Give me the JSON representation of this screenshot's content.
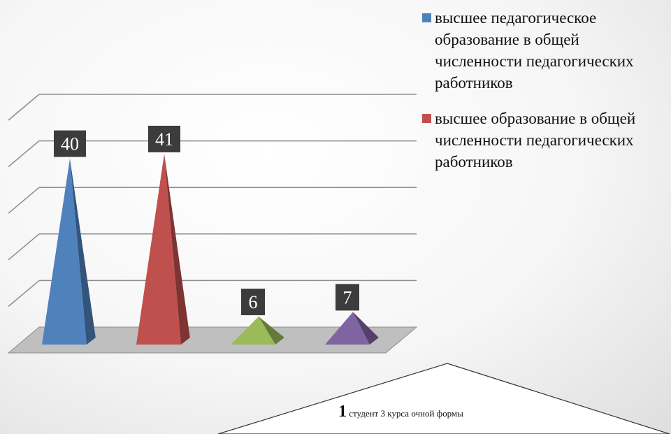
{
  "chart_data": {
    "type": "bar",
    "style": "3d-pyramid",
    "categories": [
      "",
      "",
      "",
      ""
    ],
    "values": [
      40,
      41,
      6,
      7
    ],
    "data_labels": [
      "40",
      "41",
      "6",
      "7"
    ],
    "bar_colors": [
      "#4f81bd",
      "#c0504d",
      "#9bbb59",
      "#8064a2"
    ],
    "series": [
      {
        "name": "высшее педагогическое образование в общей численности педагогических работников",
        "color": "#4f81bd"
      },
      {
        "name": "высшее образование в общей численности педагогических работников",
        "color": "#c0504d"
      }
    ],
    "ylim": [
      0,
      50
    ],
    "grid": true,
    "legend_position": "right"
  },
  "legend": {
    "item1": "высшее педагогическое образование в общей численности педагогических работников",
    "item2": "высшее образование в общей численности педагогических работников"
  },
  "footnote": {
    "number": "1",
    "text": "студент 3 курса очной формы"
  }
}
